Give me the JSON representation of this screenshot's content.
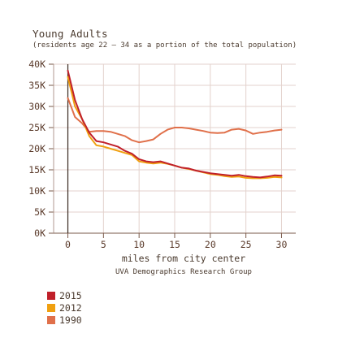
{
  "title": "Young Adults",
  "subtitle": "(residents age 22 – 34 as a portion of the total population)",
  "chart_data": {
    "type": "line",
    "xlabel": "miles from city center",
    "ylabel": "",
    "source": "UVA Demographics Research Group",
    "xlim": [
      -2,
      32
    ],
    "ylim": [
      0,
      40000
    ],
    "xticks": [
      0,
      5,
      10,
      15,
      20,
      25,
      30
    ],
    "yticks": [
      0,
      5000,
      10000,
      15000,
      20000,
      25000,
      30000,
      35000,
      40000
    ],
    "ytick_labels": [
      "0K",
      "5K",
      "10K",
      "15K",
      "20K",
      "25K",
      "30K",
      "35K",
      "40K"
    ],
    "grid": true,
    "legend_position": "bottom-left",
    "x": [
      0,
      1,
      2,
      3,
      4,
      5,
      6,
      7,
      8,
      9,
      10,
      11,
      12,
      13,
      14,
      15,
      16,
      17,
      18,
      19,
      20,
      21,
      22,
      23,
      24,
      25,
      26,
      27,
      28,
      29,
      30
    ],
    "series": [
      {
        "name": "2015",
        "color": "#c0202a",
        "values": [
          38500,
          31500,
          27000,
          23800,
          21800,
          21500,
          21000,
          20500,
          19500,
          18800,
          17500,
          17000,
          16800,
          17000,
          16500,
          16000,
          15500,
          15300,
          14800,
          14500,
          14200,
          14000,
          13800,
          13600,
          13800,
          13500,
          13300,
          13200,
          13400,
          13700,
          13600
        ]
      },
      {
        "name": "2012",
        "color": "#f0a010",
        "values": [
          37000,
          30000,
          27000,
          23000,
          20800,
          20500,
          20000,
          19500,
          19000,
          18500,
          17000,
          16700,
          16500,
          16700,
          16400,
          16000,
          15500,
          15200,
          14800,
          14400,
          14000,
          13800,
          13500,
          13300,
          13400,
          13100,
          13000,
          13000,
          13100,
          13300,
          13200
        ]
      },
      {
        "name": "1990",
        "color": "#e0704a",
        "values": [
          32000,
          27500,
          26000,
          24000,
          24200,
          24200,
          24000,
          23500,
          23000,
          22000,
          21500,
          21800,
          22200,
          23500,
          24500,
          25000,
          25000,
          24800,
          24500,
          24200,
          23800,
          23700,
          23800,
          24500,
          24700,
          24300,
          23500,
          23800,
          24000,
          24300,
          24500
        ]
      }
    ]
  }
}
